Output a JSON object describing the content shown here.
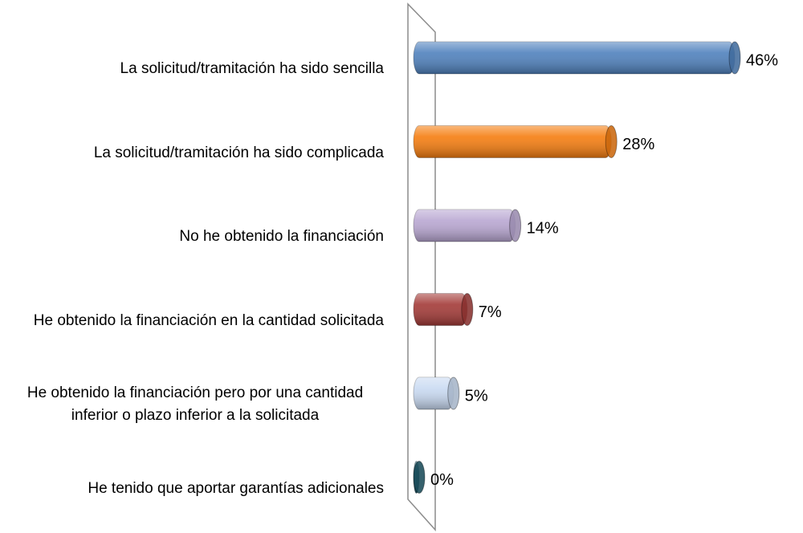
{
  "chart_data": {
    "type": "bar",
    "orientation": "horizontal",
    "categories": [
      "La solicitud/tramitación ha sido sencilla",
      "La solicitud/tramitación ha sido complicada",
      "No he obtenido la financiación",
      "He obtenido la financiación en la cantidad solicitada",
      "He obtenido la financiación pero por una cantidad inferior o plazo inferior a la solicitada",
      "He tenido que aportar garantías adicionales"
    ],
    "values": [
      46,
      28,
      14,
      7,
      5,
      0
    ],
    "value_labels": [
      "46%",
      "28%",
      "14%",
      "7%",
      "5%",
      "0%"
    ],
    "colors": [
      "#4f81bd",
      "#f57d0f",
      "#b9a7d2",
      "#a33a37",
      "#c9daf2",
      "#1f5a6b"
    ]
  }
}
